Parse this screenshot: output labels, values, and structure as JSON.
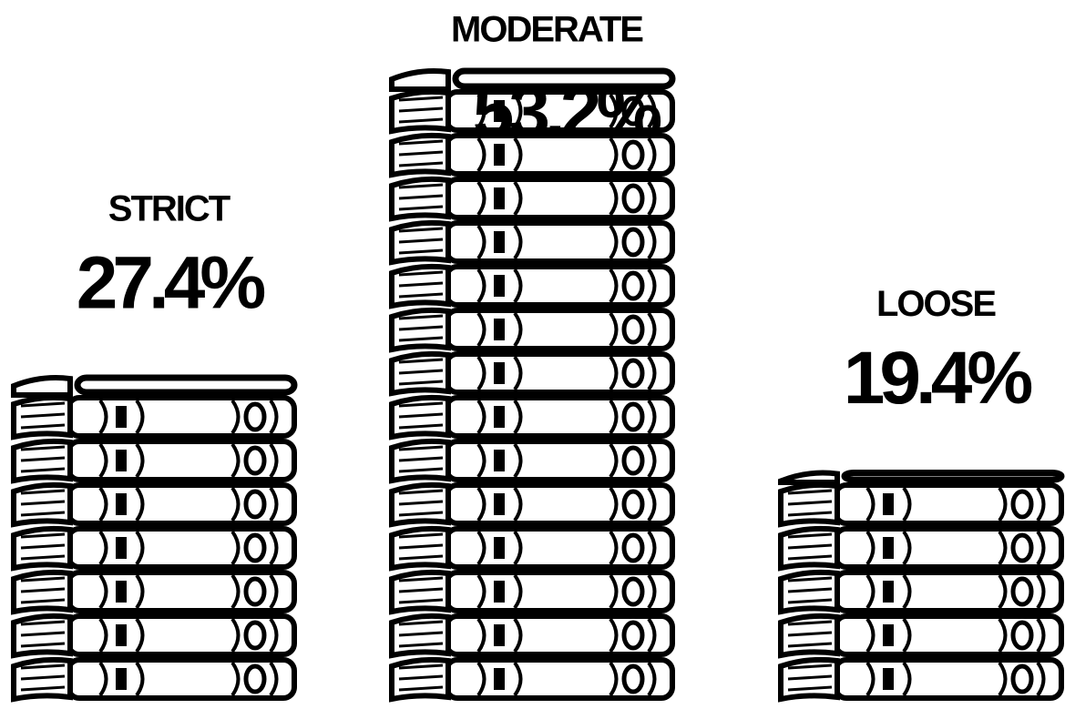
{
  "chart_data": {
    "type": "pictograph",
    "categories": [
      "STRICT",
      "MODERATE",
      "LOOSE"
    ],
    "values": [
      27.4,
      53.2,
      19.4
    ],
    "value_labels": [
      "27.4%",
      "53.2%",
      "19.4%"
    ],
    "color": "#000000"
  }
}
